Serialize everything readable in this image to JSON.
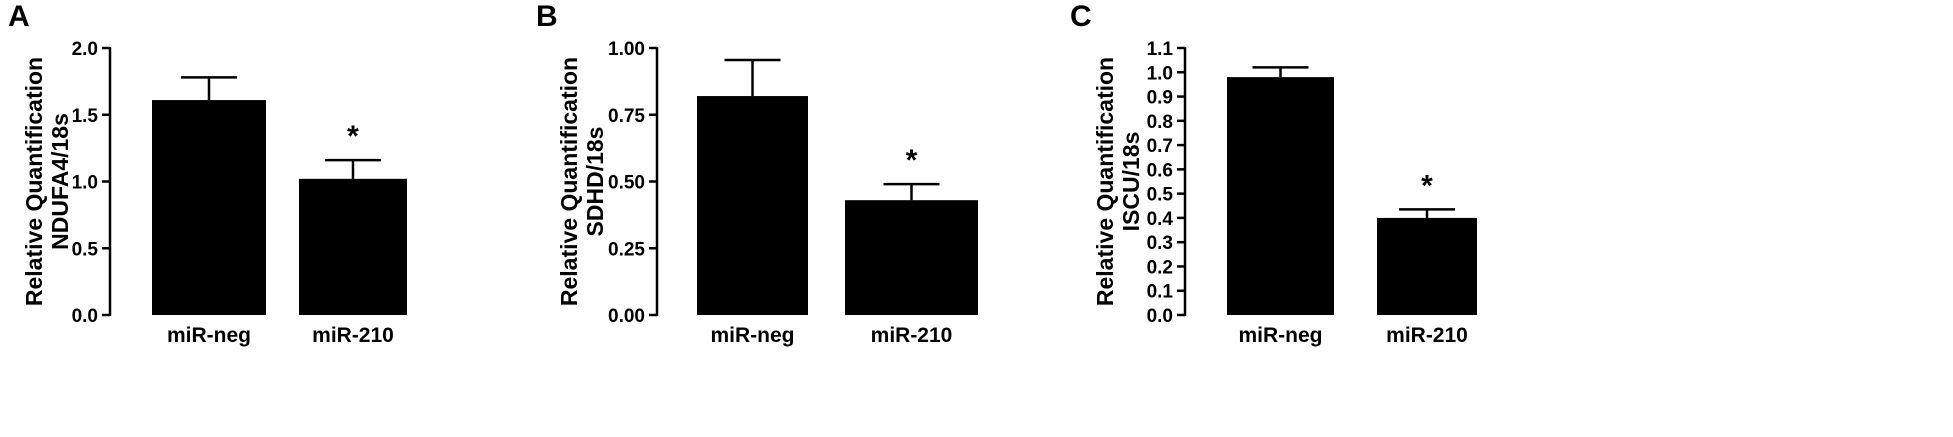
{
  "chart_data": [
    {
      "type": "bar",
      "panel": "A",
      "ylabel": [
        "Relative Quantification",
        "NDUFA4/18s"
      ],
      "categories": [
        "miR-neg",
        "miR-210"
      ],
      "values": [
        1.61,
        1.02
      ],
      "errors": [
        0.17,
        0.14
      ],
      "annotations": [
        "",
        "*"
      ],
      "ylim": [
        0,
        2.0
      ],
      "yticks": [
        "0.0",
        "0.5",
        "1.0",
        "1.5",
        "2.0"
      ],
      "ytick_values": [
        0,
        0.5,
        1.0,
        1.5,
        2.0
      ],
      "grid": false
    },
    {
      "type": "bar",
      "panel": "B",
      "ylabel": [
        "Relative Quantification",
        "SDHD/18s"
      ],
      "categories": [
        "miR-neg",
        "miR-210"
      ],
      "values": [
        0.82,
        0.43
      ],
      "errors": [
        0.135,
        0.06
      ],
      "annotations": [
        "",
        "*"
      ],
      "ylim": [
        0,
        1.0
      ],
      "yticks": [
        "0.00",
        "0.25",
        "0.50",
        "0.75",
        "1.00"
      ],
      "ytick_values": [
        0,
        0.25,
        0.5,
        0.75,
        1.0
      ],
      "grid": false
    },
    {
      "type": "bar",
      "panel": "C",
      "ylabel": [
        "Relative Quantification",
        "ISCU/18s"
      ],
      "categories": [
        "miR-neg",
        "miR-210"
      ],
      "values": [
        0.98,
        0.4
      ],
      "errors": [
        0.04,
        0.035
      ],
      "annotations": [
        "",
        "*"
      ],
      "ylim": [
        0,
        1.1
      ],
      "yticks": [
        "0.0",
        "0.1",
        "0.2",
        "0.3",
        "0.4",
        "0.5",
        "0.6",
        "0.7",
        "0.8",
        "0.9",
        "1.0",
        "1.1"
      ],
      "ytick_values": [
        0,
        0.1,
        0.2,
        0.3,
        0.4,
        0.5,
        0.6,
        0.7,
        0.8,
        0.9,
        1.0,
        1.1
      ],
      "grid": false
    }
  ]
}
